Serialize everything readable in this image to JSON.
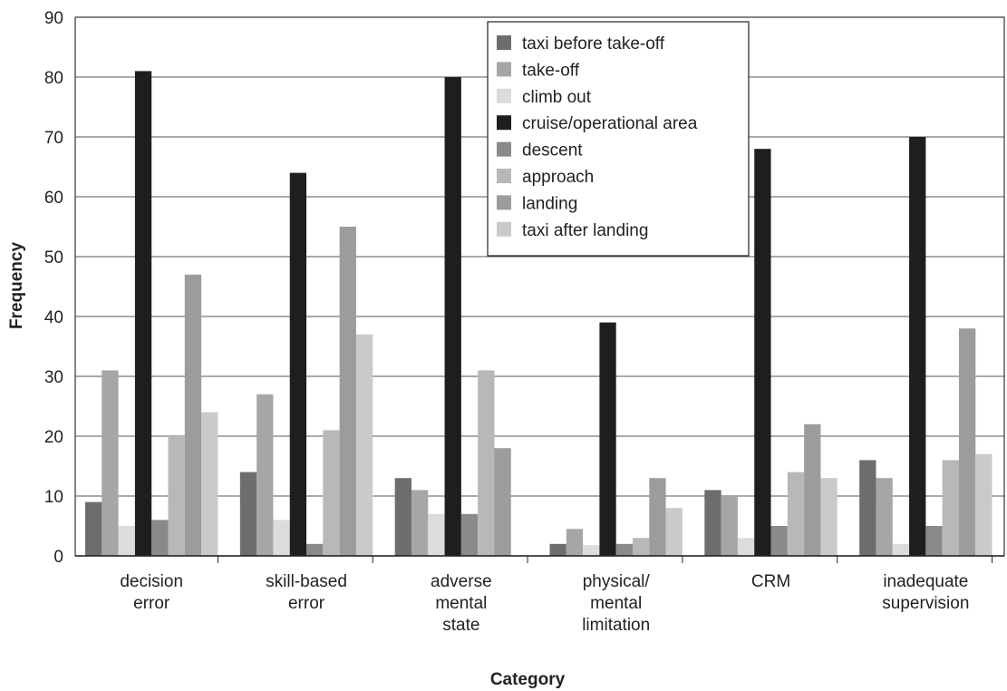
{
  "chart_data": {
    "type": "bar",
    "title": "",
    "xlabel": "Category",
    "ylabel": "Frequency",
    "ylim": [
      0,
      90
    ],
    "yticks": [
      0,
      10,
      20,
      30,
      40,
      50,
      60,
      70,
      80,
      90
    ],
    "grid": "horizontal",
    "legend_position": "top-center",
    "categories": [
      [
        "decision",
        "error"
      ],
      [
        "skill-based",
        "error"
      ],
      [
        "adverse",
        "mental",
        "state"
      ],
      [
        "physical/",
        "mental",
        "limitation"
      ],
      [
        "CRM"
      ],
      [
        "inadequate",
        "supervision"
      ]
    ],
    "series": [
      {
        "name": "taxi before take-off",
        "color": "#6d6d6d",
        "values": [
          9,
          14,
          13,
          2,
          11,
          16
        ]
      },
      {
        "name": "take-off",
        "color": "#a6a6a6",
        "values": [
          31,
          27,
          11,
          4.5,
          10,
          13
        ]
      },
      {
        "name": "climb out",
        "color": "#dcdcdc",
        "values": [
          5,
          6,
          7,
          1.8,
          3,
          2
        ]
      },
      {
        "name": "cruise/operational area",
        "color": "#1e1e1e",
        "values": [
          81,
          64,
          80,
          39,
          68,
          70
        ]
      },
      {
        "name": "descent",
        "color": "#8a8a8a",
        "values": [
          6,
          2,
          7,
          2,
          5,
          5
        ]
      },
      {
        "name": "approach",
        "color": "#b8b8b8",
        "values": [
          20,
          21,
          31,
          3,
          14,
          16
        ]
      },
      {
        "name": "landing",
        "color": "#9c9c9c",
        "values": [
          47,
          55,
          18,
          13,
          22,
          38
        ]
      },
      {
        "name": "taxi after landing",
        "color": "#cacaca",
        "values": [
          24,
          37,
          0,
          8,
          13,
          17
        ]
      }
    ]
  }
}
